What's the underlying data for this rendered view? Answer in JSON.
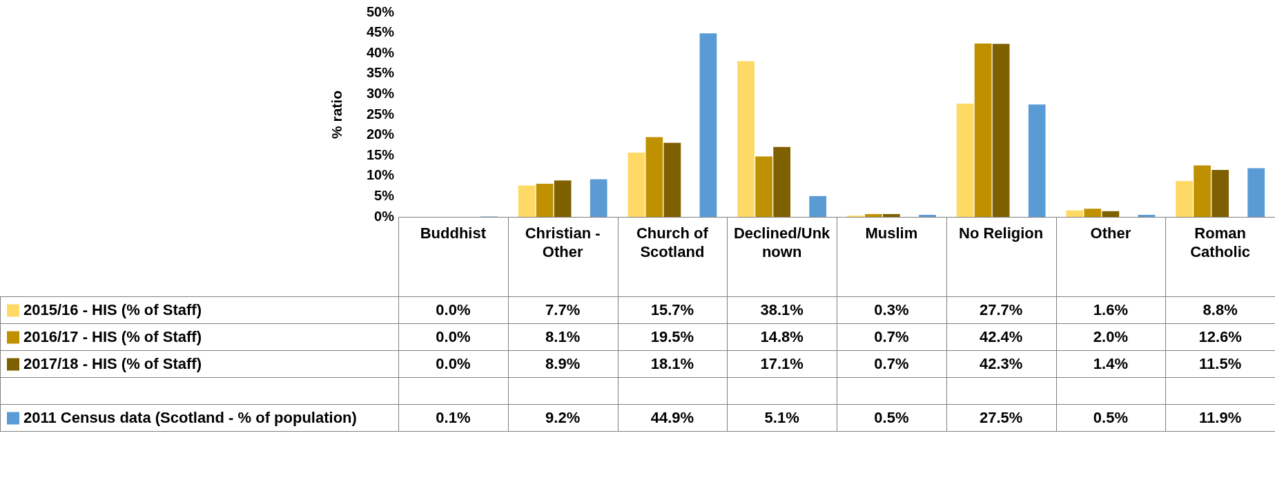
{
  "chart_data": {
    "type": "bar",
    "ylabel": "% ratio",
    "categories": [
      "Buddhist",
      "Christian - Other",
      "Church of Scotland",
      "Declined/Unknown",
      "Muslim",
      "No Religion",
      "Other",
      "Roman Catholic"
    ],
    "series": [
      {
        "name": "2015/16 - HIS (% of Staff)",
        "color": "#ffd966",
        "values": [
          0.0,
          7.7,
          15.7,
          38.1,
          0.3,
          27.7,
          1.6,
          8.8
        ],
        "value_labels": [
          "0.0%",
          "7.7%",
          "15.7%",
          "38.1%",
          "0.3%",
          "27.7%",
          "1.6%",
          "8.8%"
        ]
      },
      {
        "name": "2016/17 - HIS (% of Staff)",
        "color": "#bf9000",
        "values": [
          0.0,
          8.1,
          19.5,
          14.8,
          0.7,
          42.4,
          2.0,
          12.6
        ],
        "value_labels": [
          "0.0%",
          "8.1%",
          "19.5%",
          "14.8%",
          "0.7%",
          "42.4%",
          "2.0%",
          "12.6%"
        ]
      },
      {
        "name": "2017/18 - HIS (% of Staff)",
        "color": "#7f6000",
        "values": [
          0.0,
          8.9,
          18.1,
          17.1,
          0.7,
          42.3,
          1.4,
          11.5
        ],
        "value_labels": [
          "0.0%",
          "8.9%",
          "18.1%",
          "17.1%",
          "0.7%",
          "42.3%",
          "1.4%",
          "11.5%"
        ]
      },
      {
        "values": [
          null,
          null,
          null,
          null,
          null,
          null,
          null,
          null
        ]
      },
      {
        "name": "2011 Census data (Scotland - % of population)",
        "color": "#5b9bd5",
        "values": [
          0.1,
          9.2,
          44.9,
          5.1,
          0.5,
          27.5,
          0.5,
          11.9
        ],
        "value_labels": [
          "0.1%",
          "9.2%",
          "44.9%",
          "5.1%",
          "0.5%",
          "27.5%",
          "0.5%",
          "11.9%"
        ]
      }
    ],
    "ylim": [
      0,
      50
    ],
    "yticks": [
      {
        "value": 0,
        "label": "0%"
      },
      {
        "value": 5,
        "label": "5%"
      },
      {
        "value": 10,
        "label": "10%"
      },
      {
        "value": 15,
        "label": "15%"
      },
      {
        "value": 20,
        "label": "20%"
      },
      {
        "value": 25,
        "label": "25%"
      },
      {
        "value": 30,
        "label": "30%"
      },
      {
        "value": 35,
        "label": "35%"
      },
      {
        "value": 40,
        "label": "40%"
      },
      {
        "value": 45,
        "label": "45%"
      },
      {
        "value": 50,
        "label": "50%"
      }
    ],
    "grid": false,
    "legend": "bottom"
  }
}
